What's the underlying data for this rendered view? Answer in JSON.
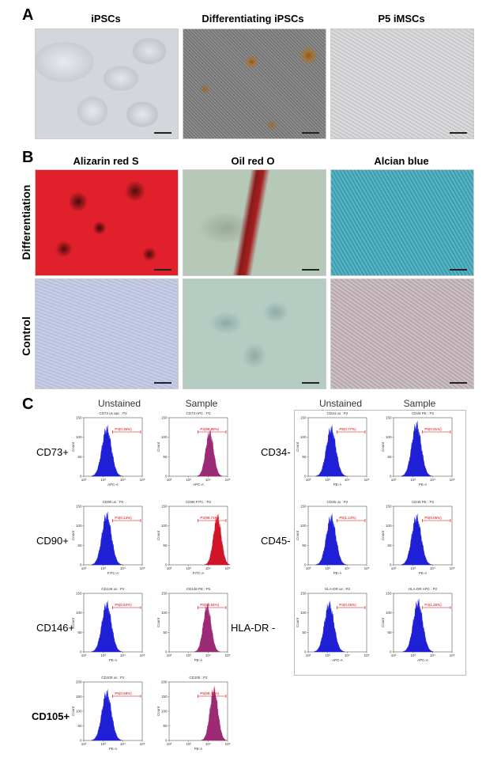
{
  "panel_a": {
    "letter": "A",
    "titles": [
      "iPSCs",
      "Differentiating iPSCs",
      "P5 iMSCs"
    ]
  },
  "panel_b": {
    "letter": "B",
    "titles": [
      "Alizarin red S",
      "Oil red O",
      "Alcian blue"
    ],
    "rows": [
      "Differentiation",
      "Control"
    ]
  },
  "panel_c": {
    "letter": "C",
    "left_headers": [
      "Unstained",
      "Sample"
    ],
    "right_headers": [
      "Unstained",
      "Sample"
    ],
    "left_rows": [
      {
        "marker": "CD73+",
        "unstained": {
          "title": "CD73 us apc : P2",
          "gate": "P4(0.35%)",
          "xlabel": "APC-A",
          "ylabel": "Count",
          "ymax": 150
        },
        "sample": {
          "title": "CD73 APC : P2",
          "gate": "P4(98.98%)",
          "xlabel": "APC-A",
          "ylabel": "Count",
          "ymax": 150
        }
      },
      {
        "marker": "CD90+",
        "unstained": {
          "title": "CD90 us : P2",
          "gate": "P3(0.13%)",
          "xlabel": "FITC-A",
          "ylabel": "Count",
          "ymax": 150
        },
        "sample": {
          "title": "CD90 FITC : P2",
          "gate": "P3(99.71%)",
          "xlabel": "FITC-A",
          "ylabel": "Count",
          "ymax": 150
        }
      },
      {
        "marker": "CD146+",
        "unstained": {
          "title": "CD146 us : P2",
          "gate": "P5(0.82%)",
          "xlabel": "PE-A",
          "ylabel": "Count",
          "ymax": 150
        },
        "sample": {
          "title": "CD146 PE : P2",
          "gate": "P5(96.64%)",
          "xlabel": "PE-A",
          "ylabel": "Count",
          "ymax": 150
        }
      },
      {
        "marker": "CD105+",
        "unstained": {
          "title": "CD105 us : P2",
          "gate": "P5(0.68%)",
          "xlabel": "PE-A",
          "ylabel": "Count",
          "ymax": 200
        },
        "sample": {
          "title": "CD105 : P2",
          "gate": "P5(99.30%)",
          "xlabel": "PE-A",
          "ylabel": "Count",
          "ymax": 200
        }
      }
    ],
    "right_rows": [
      {
        "marker": "CD34-",
        "unstained": {
          "title": "CD34 us : P2",
          "gate": "P5(0.77%)",
          "xlabel": "PE-A",
          "ylabel": "Count",
          "ymax": 150
        },
        "sample": {
          "title": "CD34 PE : P2",
          "gate": "P5(0.91%)",
          "xlabel": "PE-A",
          "ylabel": "Count",
          "ymax": 150
        }
      },
      {
        "marker": "CD45-",
        "unstained": {
          "title": "CD45 us : P2",
          "gate": "P5(1.13%)",
          "xlabel": "PE-A",
          "ylabel": "Count",
          "ymax": 150
        },
        "sample": {
          "title": "CD45 PE : P2",
          "gate": "P5(0.05%)",
          "xlabel": "PE-A",
          "ylabel": "Count",
          "ymax": 150
        }
      },
      {
        "marker": "HLA-DR -",
        "unstained": {
          "title": "HLA-DR us : P2",
          "gate": "P4(0.45%)",
          "xlabel": "APC-A",
          "ylabel": "Count",
          "ymax": 150
        },
        "sample": {
          "title": "HLA-DR APC : P2",
          "gate": "P4(1.26%)",
          "xlabel": "APC-A",
          "ylabel": "Count",
          "ymax": 150
        }
      }
    ]
  },
  "chart_data": [
    {
      "type": "area",
      "title": "CD73 us apc : P2",
      "xlabel": "APC-A",
      "ylabel": "Count",
      "xscale": "log",
      "xlim": [
        100,
        100000
      ],
      "ylim": [
        0,
        150
      ],
      "series": [
        {
          "name": "P4(0.35%)",
          "peak_x": 1500,
          "peak_y": 120
        }
      ]
    },
    {
      "type": "area",
      "title": "CD73 APC : P2",
      "xlabel": "APC-A",
      "ylabel": "Count",
      "xscale": "log",
      "xlim": [
        100,
        100000
      ],
      "ylim": [
        0,
        150
      ],
      "series": [
        {
          "name": "P4(98.98%)",
          "peak_x": 12000,
          "peak_y": 110
        }
      ]
    },
    {
      "type": "area",
      "title": "CD90 us : P2",
      "xlabel": "FITC-A",
      "ylabel": "Count",
      "xscale": "log",
      "xlim": [
        100,
        100000
      ],
      "ylim": [
        0,
        150
      ],
      "series": [
        {
          "name": "P3(0.13%)",
          "peak_x": 1500,
          "peak_y": 125
        }
      ]
    },
    {
      "type": "area",
      "title": "CD90 FITC : P2",
      "xlabel": "FITC-A",
      "ylabel": "Count",
      "xscale": "log",
      "xlim": [
        100,
        100000
      ],
      "ylim": [
        0,
        150
      ],
      "series": [
        {
          "name": "P3(99.71%)",
          "peak_x": 30000,
          "peak_y": 120
        }
      ]
    },
    {
      "type": "area",
      "title": "CD146 us : P2",
      "xlabel": "PE-A",
      "ylabel": "Count",
      "xscale": "log",
      "xlim": [
        100,
        100000
      ],
      "ylim": [
        0,
        150
      ],
      "series": [
        {
          "name": "P5(0.82%)",
          "peak_x": 1500,
          "peak_y": 120
        }
      ]
    },
    {
      "type": "area",
      "title": "CD146 PE : P2",
      "xlabel": "PE-A",
      "ylabel": "Count",
      "xscale": "log",
      "xlim": [
        100,
        100000
      ],
      "ylim": [
        0,
        150
      ],
      "series": [
        {
          "name": "P5(96.64%)",
          "peak_x": 9000,
          "peak_y": 115
        }
      ]
    },
    {
      "type": "area",
      "title": "CD105 us : P2",
      "xlabel": "PE-A",
      "ylabel": "Count",
      "xscale": "log",
      "xlim": [
        100,
        100000
      ],
      "ylim": [
        0,
        200
      ],
      "series": [
        {
          "name": "P5(0.68%)",
          "peak_x": 1500,
          "peak_y": 160
        }
      ]
    },
    {
      "type": "area",
      "title": "CD105 : P2",
      "xlabel": "PE-A",
      "ylabel": "Count",
      "xscale": "log",
      "xlim": [
        100,
        100000
      ],
      "ylim": [
        0,
        200
      ],
      "series": [
        {
          "name": "P5(99.30%)",
          "peak_x": 20000,
          "peak_y": 170
        }
      ]
    },
    {
      "type": "area",
      "title": "CD34 us : P2",
      "xlabel": "PE-A",
      "ylabel": "Count",
      "xscale": "log",
      "xlim": [
        100,
        100000
      ],
      "ylim": [
        0,
        150
      ],
      "series": [
        {
          "name": "P5(0.77%)",
          "peak_x": 1500,
          "peak_y": 120
        }
      ]
    },
    {
      "type": "area",
      "title": "CD34 PE : P2",
      "xlabel": "PE-A",
      "ylabel": "Count",
      "xscale": "log",
      "xlim": [
        100,
        100000
      ],
      "ylim": [
        0,
        150
      ],
      "series": [
        {
          "name": "P5(0.91%)",
          "peak_x": 1500,
          "peak_y": 130
        }
      ]
    },
    {
      "type": "area",
      "title": "CD45 us : P2",
      "xlabel": "PE-A",
      "ylabel": "Count",
      "xscale": "log",
      "xlim": [
        100,
        100000
      ],
      "ylim": [
        0,
        150
      ],
      "series": [
        {
          "name": "P5(1.13%)",
          "peak_x": 1500,
          "peak_y": 120
        }
      ]
    },
    {
      "type": "area",
      "title": "CD45 PE : P2",
      "xlabel": "PE-A",
      "ylabel": "Count",
      "xscale": "log",
      "xlim": [
        100,
        100000
      ],
      "ylim": [
        0,
        150
      ],
      "series": [
        {
          "name": "P5(0.05%)",
          "peak_x": 1500,
          "peak_y": 120
        }
      ]
    },
    {
      "type": "area",
      "title": "HLA-DR us : P2",
      "xlabel": "APC-A",
      "ylabel": "Count",
      "xscale": "log",
      "xlim": [
        100,
        100000
      ],
      "ylim": [
        0,
        150
      ],
      "series": [
        {
          "name": "P4(0.45%)",
          "peak_x": 1200,
          "peak_y": 120
        }
      ]
    },
    {
      "type": "area",
      "title": "HLA-DR APC : P2",
      "xlabel": "APC-A",
      "ylabel": "Count",
      "xscale": "log",
      "xlim": [
        100,
        100000
      ],
      "ylim": [
        0,
        150
      ],
      "series": [
        {
          "name": "P4(1.26%)",
          "peak_x": 1800,
          "peak_y": 125
        }
      ]
    }
  ]
}
